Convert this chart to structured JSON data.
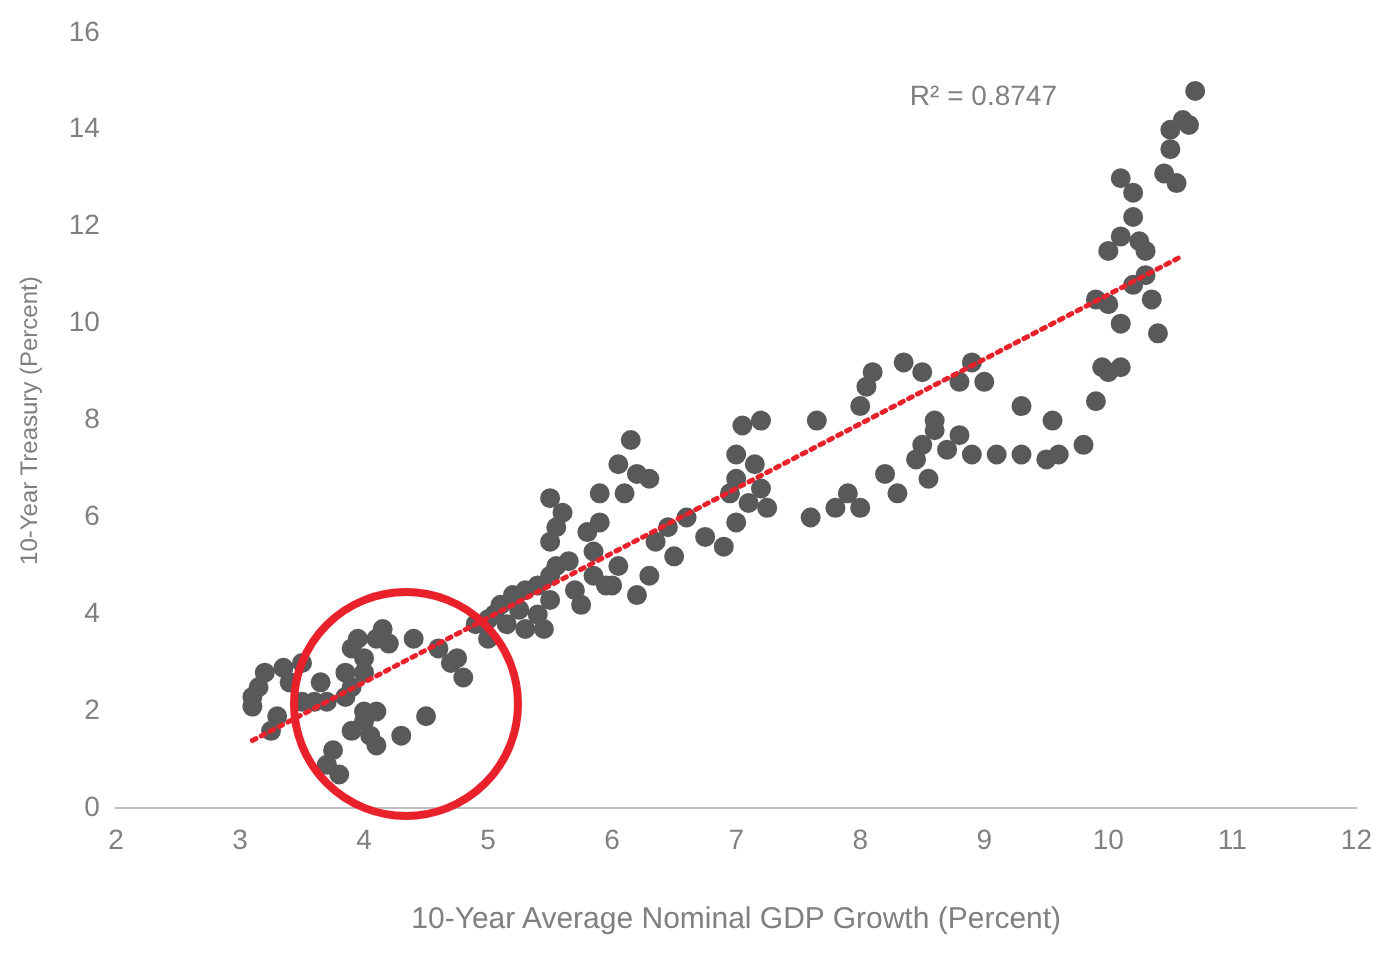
{
  "chart_data": {
    "type": "scatter",
    "xlabel": "10-Year Average Nominal GDP Growth (Percent)",
    "ylabel": "10-Year Treasury (Percent)",
    "xlim": [
      2,
      12
    ],
    "xticks": [
      2,
      3,
      4,
      5,
      6,
      7,
      8,
      9,
      10,
      11,
      12
    ],
    "ylim": [
      0,
      16
    ],
    "yticks": [
      0,
      2,
      4,
      6,
      8,
      10,
      12,
      14,
      16
    ],
    "marker": "circle",
    "annotations": [
      "R² = 0.8747"
    ],
    "series": [
      {
        "color": "#58595b",
        "x": [
          3.1,
          3.1,
          3.15,
          3.2,
          3.25,
          3.3,
          3.35,
          3.4,
          3.5,
          3.5,
          3.6,
          3.65,
          3.7,
          3.75,
          3.7,
          3.8,
          3.85,
          3.9,
          3.9,
          3.95,
          4.0,
          4.0,
          4.0,
          4.0,
          4.05,
          4.1,
          4.1,
          4.1,
          4.15,
          4.2,
          3.9,
          3.85,
          4.4,
          4.3,
          4.5,
          4.6,
          4.7,
          4.8,
          4.75,
          4.9,
          5.0,
          5.0,
          5.05,
          5.1,
          5.15,
          5.2,
          5.25,
          5.3,
          5.3,
          5.4,
          5.4,
          5.45,
          5.5,
          5.5,
          5.55,
          5.5,
          5.5,
          5.55,
          5.6,
          5.65,
          5.7,
          5.75,
          5.8,
          5.85,
          5.9,
          5.9,
          5.85,
          5.95,
          6.0,
          6.05,
          6.1,
          6.05,
          6.15,
          6.2,
          6.3,
          6.35,
          6.3,
          6.2,
          6.45,
          6.5,
          6.6,
          6.75,
          6.9,
          6.95,
          7.0,
          7.0,
          7.0,
          7.05,
          7.1,
          7.15,
          7.2,
          7.25,
          7.2,
          7.6,
          7.65,
          7.8,
          7.9,
          8.0,
          8.0,
          8.05,
          8.2,
          8.3,
          8.45,
          8.5,
          8.55,
          8.6,
          8.7,
          8.8,
          8.9,
          8.8,
          8.5,
          8.6,
          8.35,
          8.1,
          8.9,
          9.0,
          9.1,
          9.3,
          9.3,
          9.5,
          9.6,
          9.55,
          9.8,
          9.9,
          9.95,
          10.0,
          10.1,
          9.9,
          10.0,
          10.1,
          10.2,
          10.3,
          10.0,
          10.1,
          10.2,
          10.25,
          10.1,
          10.2,
          10.45,
          10.55,
          10.3,
          10.5,
          10.5,
          10.6,
          10.65,
          10.7,
          10.35,
          10.4
        ],
        "values": [
          2.3,
          2.1,
          2.5,
          2.8,
          1.6,
          1.9,
          2.9,
          2.6,
          3.0,
          2.2,
          2.2,
          2.6,
          2.2,
          1.2,
          0.9,
          0.7,
          2.3,
          2.5,
          3.3,
          3.5,
          2.8,
          3.1,
          2.0,
          1.8,
          1.5,
          1.3,
          2.0,
          3.5,
          3.7,
          3.4,
          1.6,
          2.8,
          3.5,
          1.5,
          1.9,
          3.3,
          3.0,
          2.7,
          3.1,
          3.8,
          3.9,
          3.5,
          4.0,
          4.2,
          3.8,
          4.4,
          4.1,
          3.7,
          4.5,
          4.0,
          4.6,
          3.7,
          4.8,
          4.3,
          5.0,
          5.5,
          6.4,
          5.8,
          6.1,
          5.1,
          4.5,
          4.2,
          5.7,
          5.3,
          5.9,
          6.5,
          4.8,
          4.6,
          4.6,
          5.0,
          6.5,
          7.1,
          7.6,
          6.9,
          6.8,
          5.5,
          4.8,
          4.4,
          5.8,
          5.2,
          6.0,
          5.6,
          5.4,
          6.5,
          5.9,
          6.8,
          7.3,
          7.9,
          6.3,
          7.1,
          6.6,
          6.2,
          8.0,
          6.0,
          8.0,
          6.2,
          6.5,
          6.2,
          8.3,
          8.7,
          6.9,
          6.5,
          7.2,
          7.5,
          6.8,
          7.8,
          7.4,
          7.7,
          7.3,
          8.8,
          9.0,
          8.0,
          9.2,
          9.0,
          9.2,
          8.8,
          7.3,
          7.3,
          8.3,
          7.2,
          7.3,
          8.0,
          7.5,
          8.4,
          9.1,
          9.0,
          9.1,
          10.5,
          10.4,
          10.0,
          10.8,
          11.0,
          11.5,
          11.8,
          12.2,
          11.7,
          13.0,
          12.7,
          13.1,
          12.9,
          11.5,
          13.6,
          14.0,
          14.2,
          14.1,
          14.8,
          10.5,
          9.8
        ]
      },
      {
        "type": "line",
        "color": "#e8212a",
        "line_style": "dotted",
        "marker": "none",
        "x": [
          3.1,
          10.6
        ],
        "values": [
          1.4,
          11.4
        ]
      }
    ]
  }
}
